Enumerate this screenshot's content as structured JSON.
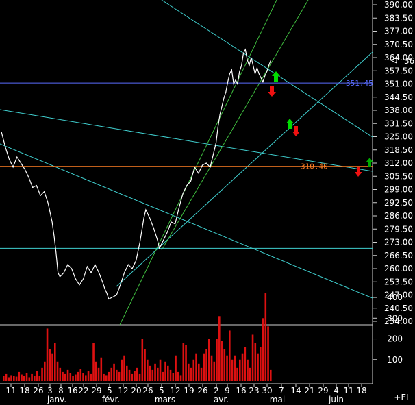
{
  "chart_data": {
    "type": "line",
    "title": "",
    "price_axis": {
      "ticks": [
        "390.00",
        "383.50",
        "377.00",
        "370.50",
        "364.00",
        "357.50",
        "351.00",
        "344.50",
        "338.00",
        "331.50",
        "325.00",
        "318.50",
        "312.00",
        "305.50",
        "299.00",
        "292.50",
        "286.00",
        "279.50",
        "273.00",
        "266.50",
        "260.00",
        "253.50",
        "247.00",
        "240.50",
        "234.00"
      ],
      "range": [
        234,
        391
      ]
    },
    "last_price": {
      "label": "362.55",
      "value": 362.55
    },
    "volume_axis": {
      "ticks": [
        "400",
        "300",
        "200",
        "100"
      ],
      "range": [
        0,
        430
      ]
    },
    "date_axis": {
      "day_labels": [
        "11",
        "18",
        "26",
        "3",
        "8",
        "16",
        "22",
        "29",
        "5",
        "12",
        "20",
        "26",
        "5",
        "12",
        "19",
        "26",
        "2",
        "9",
        "16",
        "23",
        "30",
        "7",
        "14",
        "21",
        "29",
        "4",
        "11",
        "18"
      ],
      "month_labels": [
        "janv.",
        "févr.",
        "mars",
        "avr.",
        "mai",
        "juin"
      ],
      "corner_label": "+EI"
    },
    "price_series": [
      [
        0,
        327.5
      ],
      [
        2,
        320
      ],
      [
        4,
        314
      ],
      [
        6,
        310
      ],
      [
        8,
        315
      ],
      [
        10,
        312
      ],
      [
        12,
        309
      ],
      [
        14,
        305
      ],
      [
        16,
        300
      ],
      [
        18,
        301
      ],
      [
        20,
        296
      ],
      [
        22,
        298
      ],
      [
        24,
        292
      ],
      [
        26,
        283
      ],
      [
        27,
        276
      ],
      [
        28,
        268
      ],
      [
        29,
        258
      ],
      [
        30,
        256
      ],
      [
        32,
        258
      ],
      [
        34,
        262
      ],
      [
        36,
        260
      ],
      [
        38,
        255
      ],
      [
        40,
        252
      ],
      [
        42,
        255
      ],
      [
        44,
        261
      ],
      [
        46,
        258
      ],
      [
        48,
        262
      ],
      [
        50,
        258
      ],
      [
        52,
        253
      ],
      [
        53,
        250
      ],
      [
        54,
        248
      ],
      [
        55,
        245
      ],
      [
        57,
        246
      ],
      [
        59,
        247
      ],
      [
        61,
        252
      ],
      [
        63,
        258
      ],
      [
        65,
        262
      ],
      [
        67,
        260
      ],
      [
        69,
        264
      ],
      [
        71,
        273
      ],
      [
        73,
        285
      ],
      [
        74,
        289
      ],
      [
        76,
        285
      ],
      [
        78,
        280
      ],
      [
        80,
        274
      ],
      [
        81,
        270
      ],
      [
        83,
        274
      ],
      [
        85,
        278
      ],
      [
        87,
        283
      ],
      [
        89,
        282
      ],
      [
        91,
        290
      ],
      [
        93,
        297
      ],
      [
        95,
        301
      ],
      [
        97,
        303
      ],
      [
        99,
        310
      ],
      [
        101,
        307
      ],
      [
        103,
        311
      ],
      [
        105,
        312
      ],
      [
        107,
        310
      ],
      [
        109,
        318
      ],
      [
        110,
        322
      ],
      [
        111,
        330
      ],
      [
        112,
        336
      ],
      [
        113,
        340
      ],
      [
        114,
        344
      ],
      [
        115,
        347
      ],
      [
        116,
        352
      ],
      [
        117,
        356
      ],
      [
        118,
        358
      ],
      [
        119,
        351
      ],
      [
        120,
        353
      ],
      [
        121,
        351
      ],
      [
        122,
        357
      ],
      [
        123,
        360
      ],
      [
        124,
        366
      ],
      [
        125,
        368
      ],
      [
        126,
        363
      ],
      [
        127,
        360
      ],
      [
        128,
        364
      ],
      [
        129,
        360
      ],
      [
        130,
        356
      ],
      [
        131,
        359
      ],
      [
        132,
        356
      ],
      [
        133,
        354
      ],
      [
        134,
        352
      ],
      [
        135,
        355
      ],
      [
        136,
        357
      ],
      [
        137,
        360
      ],
      [
        138,
        362.5
      ]
    ],
    "volume_series": [
      [
        0,
        20
      ],
      [
        1,
        30
      ],
      [
        2,
        15
      ],
      [
        3,
        25
      ],
      [
        4,
        20
      ],
      [
        5,
        18
      ],
      [
        6,
        40
      ],
      [
        7,
        28
      ],
      [
        8,
        22
      ],
      [
        9,
        35
      ],
      [
        10,
        15
      ],
      [
        11,
        30
      ],
      [
        12,
        20
      ],
      [
        13,
        45
      ],
      [
        14,
        22
      ],
      [
        15,
        60
      ],
      [
        16,
        90
      ],
      [
        17,
        250
      ],
      [
        18,
        150
      ],
      [
        19,
        130
      ],
      [
        20,
        180
      ],
      [
        21,
        90
      ],
      [
        22,
        60
      ],
      [
        23,
        40
      ],
      [
        24,
        30
      ],
      [
        25,
        50
      ],
      [
        26,
        35
      ],
      [
        27,
        20
      ],
      [
        28,
        28
      ],
      [
        29,
        40
      ],
      [
        30,
        55
      ],
      [
        31,
        35
      ],
      [
        32,
        25
      ],
      [
        33,
        45
      ],
      [
        34,
        30
      ],
      [
        35,
        180
      ],
      [
        36,
        90
      ],
      [
        37,
        60
      ],
      [
        38,
        110
      ],
      [
        39,
        30
      ],
      [
        40,
        25
      ],
      [
        41,
        40
      ],
      [
        42,
        60
      ],
      [
        43,
        80
      ],
      [
        44,
        50
      ],
      [
        45,
        40
      ],
      [
        46,
        100
      ],
      [
        47,
        120
      ],
      [
        48,
        70
      ],
      [
        49,
        50
      ],
      [
        50,
        30
      ],
      [
        51,
        45
      ],
      [
        52,
        60
      ],
      [
        53,
        30
      ],
      [
        54,
        200
      ],
      [
        55,
        150
      ],
      [
        56,
        100
      ],
      [
        57,
        70
      ],
      [
        58,
        50
      ],
      [
        59,
        80
      ],
      [
        60,
        60
      ],
      [
        61,
        100
      ],
      [
        62,
        40
      ],
      [
        63,
        90
      ],
      [
        64,
        70
      ],
      [
        65,
        50
      ],
      [
        66,
        35
      ],
      [
        67,
        120
      ],
      [
        68,
        40
      ],
      [
        69,
        25
      ],
      [
        70,
        180
      ],
      [
        71,
        170
      ],
      [
        72,
        80
      ],
      [
        73,
        60
      ],
      [
        74,
        100
      ],
      [
        75,
        130
      ],
      [
        76,
        80
      ],
      [
        77,
        60
      ],
      [
        78,
        130
      ],
      [
        79,
        150
      ],
      [
        80,
        200
      ],
      [
        81,
        120
      ],
      [
        82,
        90
      ],
      [
        83,
        200
      ],
      [
        84,
        310
      ],
      [
        85,
        190
      ],
      [
        86,
        150
      ],
      [
        87,
        120
      ],
      [
        88,
        240
      ],
      [
        89,
        100
      ],
      [
        90,
        120
      ],
      [
        91,
        60
      ],
      [
        92,
        100
      ],
      [
        93,
        130
      ],
      [
        94,
        160
      ],
      [
        95,
        100
      ],
      [
        96,
        60
      ],
      [
        97,
        220
      ],
      [
        98,
        180
      ],
      [
        99,
        130
      ],
      [
        100,
        160
      ],
      [
        101,
        300
      ],
      [
        102,
        420
      ],
      [
        103,
        260
      ],
      [
        104,
        50
      ]
    ],
    "horizontal_lines": [
      {
        "label": "351.45",
        "value": 351.45,
        "color": "#5a6cff"
      },
      {
        "label": "310.40",
        "value": 310.4,
        "color": "#ff7f24"
      },
      {
        "label": "",
        "value": 270.0,
        "color": "#40d0d0"
      }
    ],
    "grid": false,
    "colors": {
      "background": "#000000",
      "price": "#ffffff",
      "volume": "#dd1111",
      "trend": "#40d0d0",
      "channel": "#40c040",
      "arrow_up": "#00dd00",
      "arrow_down": "#ee1111"
    }
  }
}
